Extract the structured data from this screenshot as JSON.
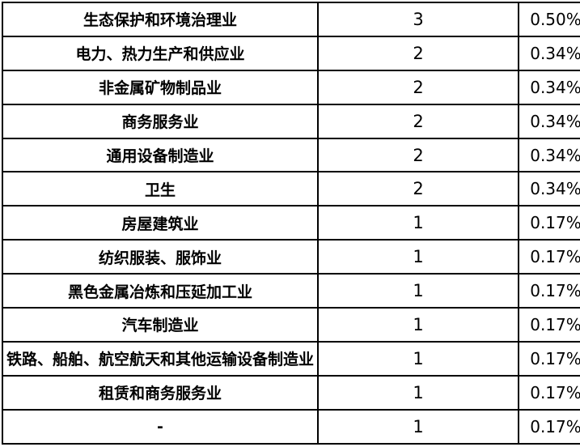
{
  "table": {
    "column_keys": [
      "industry",
      "count",
      "percentage"
    ],
    "rows": [
      {
        "industry": "生态保护和环境治理业",
        "count": "3",
        "percentage": "0.50%"
      },
      {
        "industry": "电力、热力生产和供应业",
        "count": "2",
        "percentage": "0.34%"
      },
      {
        "industry": "非金属矿物制品业",
        "count": "2",
        "percentage": "0.34%"
      },
      {
        "industry": "商务服务业",
        "count": "2",
        "percentage": "0.34%"
      },
      {
        "industry": "通用设备制造业",
        "count": "2",
        "percentage": "0.34%"
      },
      {
        "industry": "卫生",
        "count": "2",
        "percentage": "0.34%"
      },
      {
        "industry": "房屋建筑业",
        "count": "1",
        "percentage": "0.17%"
      },
      {
        "industry": "纺织服装、服饰业",
        "count": "1",
        "percentage": "0.17%"
      },
      {
        "industry": "黑色金属冶炼和压延加工业",
        "count": "1",
        "percentage": "0.17%"
      },
      {
        "industry": "汽车制造业",
        "count": "1",
        "percentage": "0.17%"
      },
      {
        "industry": "铁路、船舶、航空航天和其他运输设备制造业",
        "count": "1",
        "percentage": "0.17%"
      },
      {
        "industry": "租赁和商务服务业",
        "count": "1",
        "percentage": "0.17%"
      },
      {
        "industry": "-",
        "count": "1",
        "percentage": "0.17%"
      }
    ],
    "colors": {
      "border": "#000000",
      "text": "#000000",
      "background": "#ffffff"
    }
  }
}
